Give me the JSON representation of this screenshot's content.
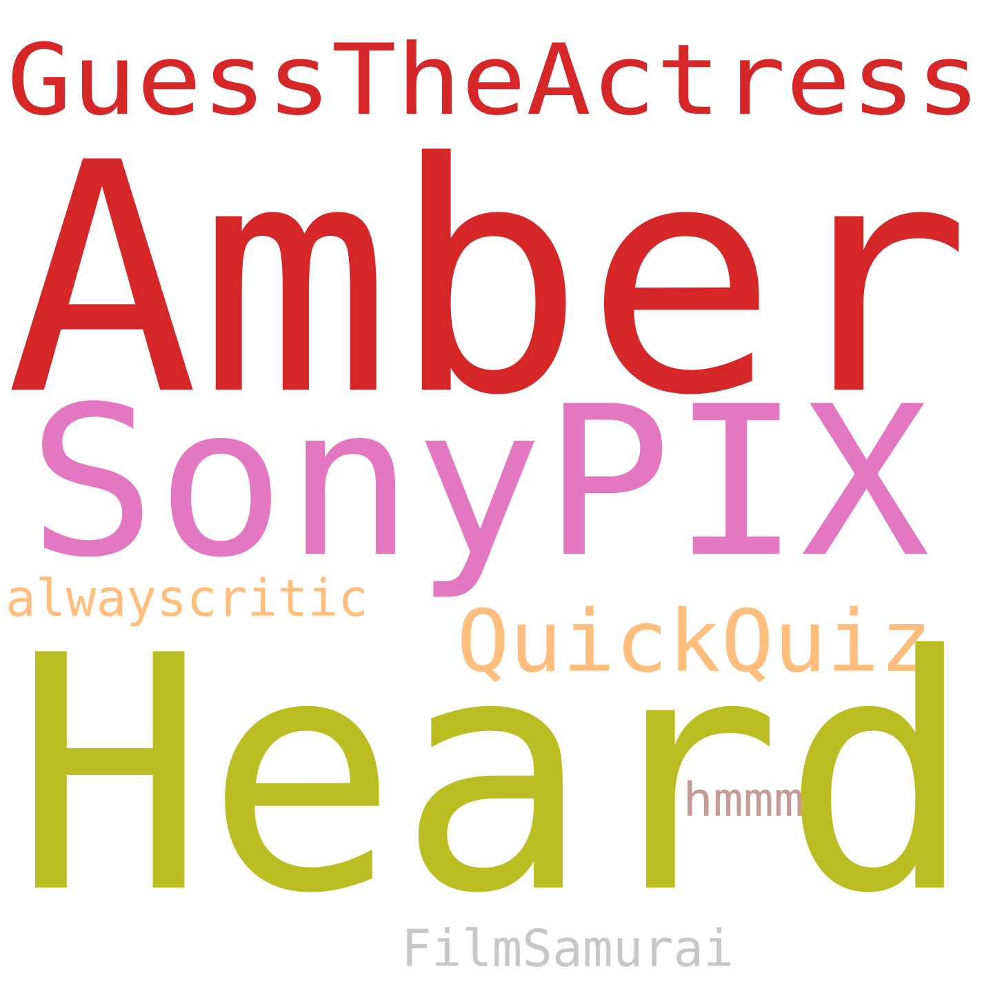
{
  "word_cloud": {
    "words": [
      {
        "text": "GuessTheActress",
        "color": "#d62728"
      },
      {
        "text": "Amber",
        "color": "#d62728"
      },
      {
        "text": "SonyPIX",
        "color": "#e377c2"
      },
      {
        "text": "alwayscritic",
        "color": "#ffbe7d"
      },
      {
        "text": "QuickQuiz",
        "color": "#ffbe7d"
      },
      {
        "text": "Heard",
        "color": "#bcbd22"
      },
      {
        "text": "hmmm",
        "color": "#c49c94"
      },
      {
        "text": "FilmSamurai",
        "color": "#c7c7c7"
      }
    ]
  }
}
